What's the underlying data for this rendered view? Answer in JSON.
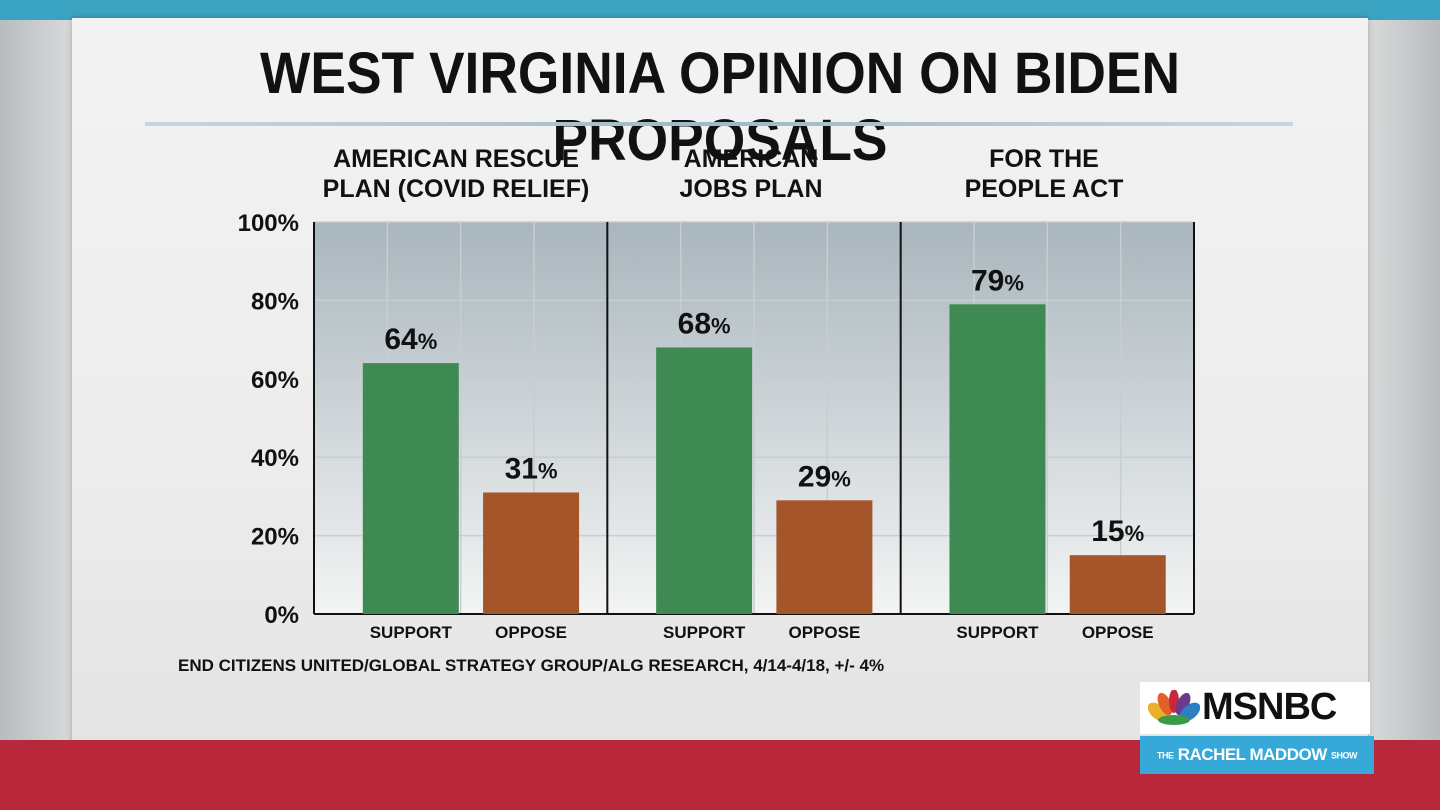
{
  "title": "WEST VIRGINIA OPINION ON BIDEN PROPOSALS",
  "source": "END CITIZENS UNITED/GLOBAL STRATEGY GROUP/ALG RESEARCH, 4/14-4/18, +/- 4%",
  "colors": {
    "support": "#3f8a52",
    "oppose": "#a5552a",
    "plot_top": "#a9b6bd",
    "plot_bottom": "#f3f4f4"
  },
  "logo": {
    "network": "MSNBC",
    "show_prefix": "THE",
    "show_name": "RACHEL MADDOW",
    "show_suffix": "SHOW"
  },
  "chart_data": {
    "type": "bar",
    "ylim": [
      0,
      100
    ],
    "yticks": [
      "0%",
      "20%",
      "40%",
      "60%",
      "80%",
      "100%"
    ],
    "ytick_values": [
      0,
      20,
      40,
      60,
      80,
      100
    ],
    "grid": true,
    "categories": [
      "SUPPORT",
      "OPPOSE"
    ],
    "panels": [
      {
        "title_lines": [
          "AMERICAN RESCUE",
          "PLAN (COVID RELIEF)"
        ],
        "values": [
          64,
          31
        ],
        "labels": [
          "64",
          "31"
        ]
      },
      {
        "title_lines": [
          "AMERICAN",
          "JOBS PLAN"
        ],
        "values": [
          68,
          29
        ],
        "labels": [
          "68",
          "29"
        ]
      },
      {
        "title_lines": [
          "FOR THE",
          "PEOPLE ACT"
        ],
        "values": [
          79,
          15
        ],
        "labels": [
          "79",
          "15"
        ]
      }
    ],
    "value_suffix": "%"
  }
}
